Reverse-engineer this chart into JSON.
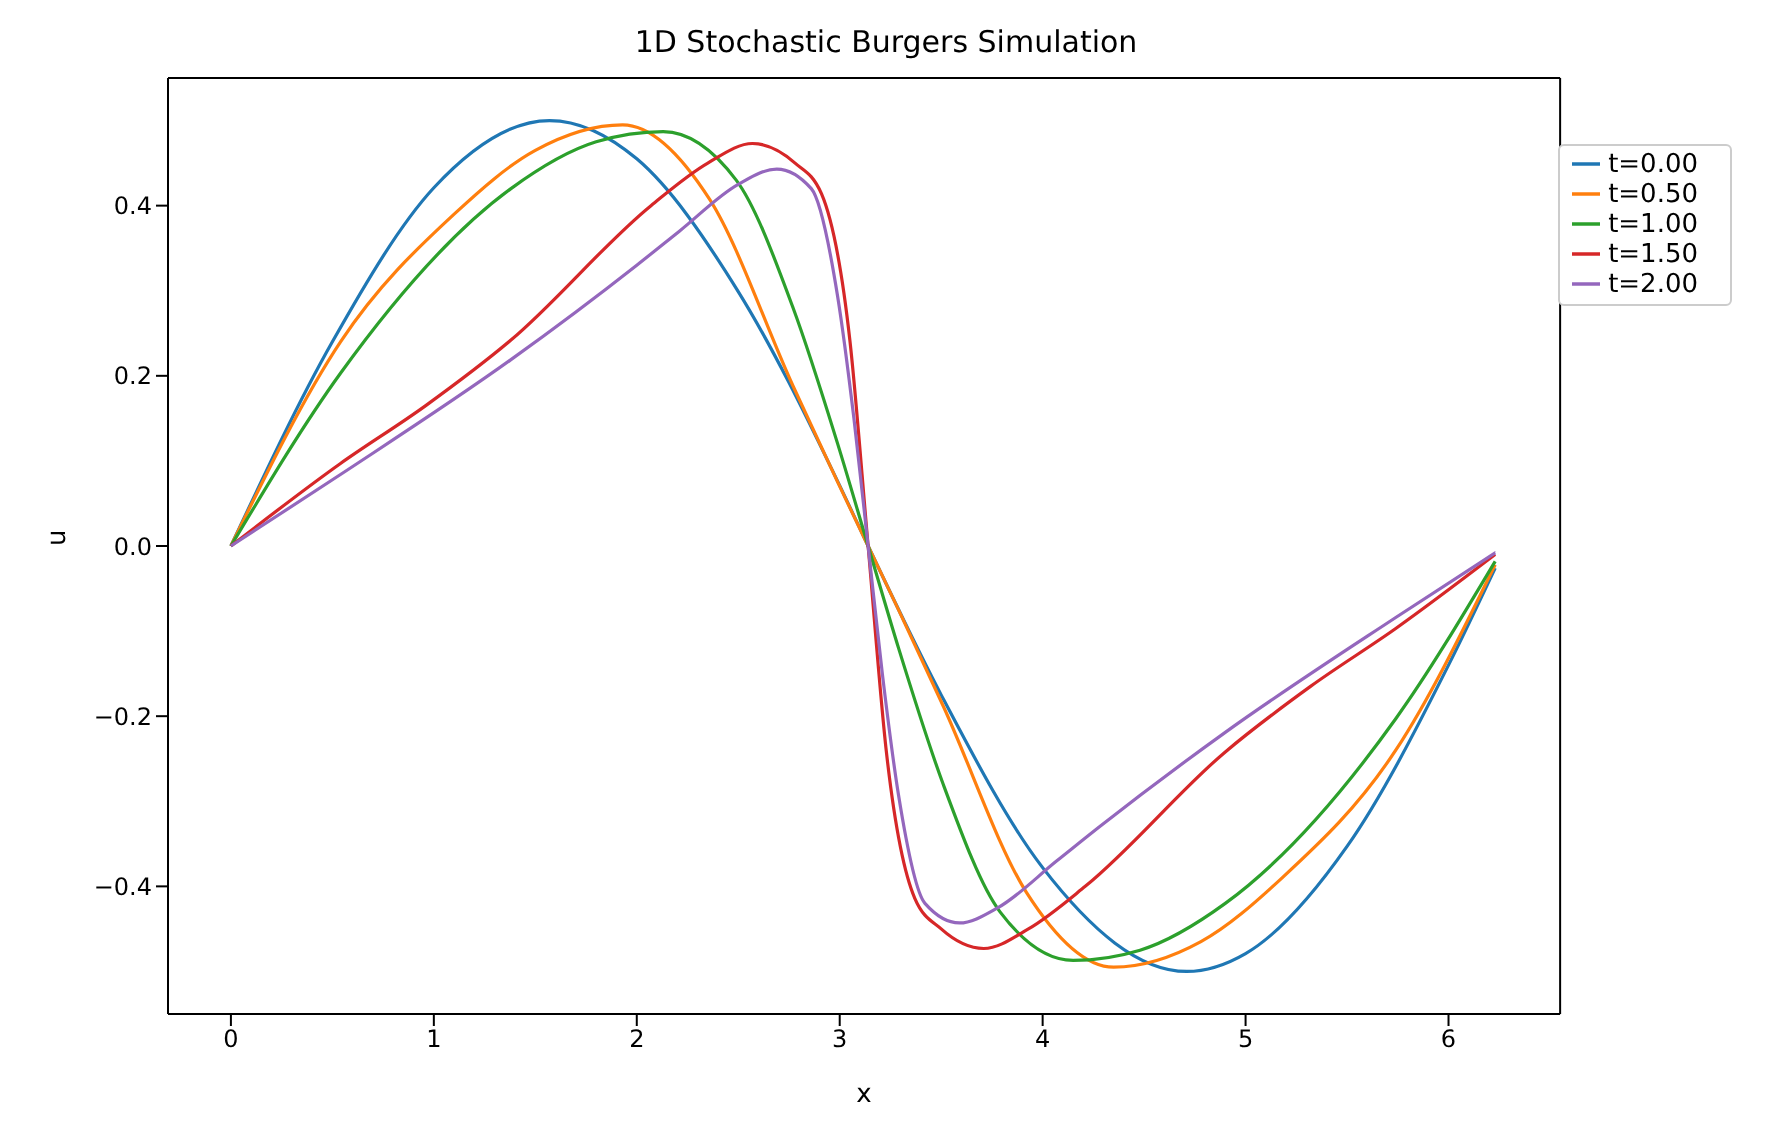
{
  "chart_data": {
    "type": "line",
    "title": "1D Stochastic Burgers Simulation",
    "xlabel": "x",
    "ylabel": "u",
    "xlim": [
      -0.31,
      6.55
    ],
    "xticks": [
      0,
      1,
      2,
      3,
      4,
      5,
      6
    ],
    "ylim": [
      -0.55,
      0.55
    ],
    "yticks": [
      {
        "value": -0.4,
        "label": "−0.4"
      },
      {
        "value": -0.2,
        "label": "−0.2"
      },
      {
        "value": 0,
        "label": "0.0"
      },
      {
        "value": 0.2,
        "label": "0.2"
      },
      {
        "value": 0.4,
        "label": "0.4"
      }
    ],
    "grid": false,
    "legend": "top right",
    "marker": "none",
    "line_style": "solid",
    "series": [
      {
        "name": "t=0.00",
        "color": "#1f77b4",
        "x": [
          0,
          0.5,
          1,
          1.57,
          2,
          2.5,
          3,
          3.14,
          3.5,
          4,
          4.71,
          5,
          5.5,
          6,
          6.23
        ],
        "values": [
          0,
          0.24,
          0.421,
          0.5,
          0.455,
          0.299,
          0.071,
          0,
          -0.175,
          -0.378,
          -0.5,
          -0.479,
          -0.353,
          -0.14,
          -0.026
        ]
      },
      {
        "name": "t=0.50",
        "color": "#ff7f0e",
        "x": [
          0,
          0.54,
          1.1,
          1.5,
          1.93,
          2.36,
          2.77,
          2.99,
          3.14,
          3.29,
          3.51,
          3.92,
          4.35,
          4.78,
          5.18,
          5.74,
          6.23
        ],
        "values": [
          0,
          0.24,
          0.39,
          0.465,
          0.495,
          0.407,
          0.188,
          0.075,
          0,
          -0.075,
          -0.188,
          -0.407,
          -0.495,
          -0.465,
          -0.39,
          -0.24,
          -0.022
        ]
      },
      {
        "name": "t=1.00",
        "color": "#2ca02c",
        "x": [
          0,
          0.54,
          1.38,
          1.8,
          2.13,
          2.49,
          2.77,
          2.99,
          3.14,
          3.29,
          3.51,
          3.79,
          4.15,
          4.48,
          4.9,
          5.74,
          6.23
        ],
        "values": [
          0,
          0.203,
          0.42,
          0.475,
          0.487,
          0.43,
          0.28,
          0.12,
          0,
          -0.12,
          -0.28,
          -0.43,
          -0.487,
          -0.475,
          -0.42,
          -0.203,
          -0.018
        ]
      },
      {
        "name": "t=1.50",
        "color": "#d62728",
        "x": [
          0,
          0.54,
          0.96,
          1.38,
          2.07,
          2.35,
          2.57,
          2.78,
          2.91,
          3.05,
          3.14,
          3.23,
          3.37,
          3.5,
          3.71,
          3.93,
          4.21,
          4.9,
          5.32,
          5.74,
          6.23
        ],
        "values": [
          0,
          0.097,
          0.165,
          0.242,
          0.4,
          0.45,
          0.473,
          0.45,
          0.414,
          0.242,
          0,
          -0.242,
          -0.414,
          -0.45,
          -0.473,
          -0.45,
          -0.4,
          -0.242,
          -0.165,
          -0.097,
          -0.01
        ]
      },
      {
        "name": "t=2.00",
        "color": "#9467bd",
        "x": [
          0,
          0.54,
          1.38,
          2,
          2.21,
          2.5,
          2.69,
          2.86,
          2.99,
          3.07,
          3.14,
          3.21,
          3.29,
          3.42,
          3.59,
          3.78,
          4.07,
          4.28,
          4.9,
          5.74,
          6.23
        ],
        "values": [
          0,
          0.084,
          0.219,
          0.33,
          0.37,
          0.425,
          0.443,
          0.42,
          0.293,
          0.15,
          0,
          -0.15,
          -0.293,
          -0.42,
          -0.443,
          -0.425,
          -0.37,
          -0.33,
          -0.219,
          -0.084,
          -0.008
        ]
      }
    ]
  }
}
